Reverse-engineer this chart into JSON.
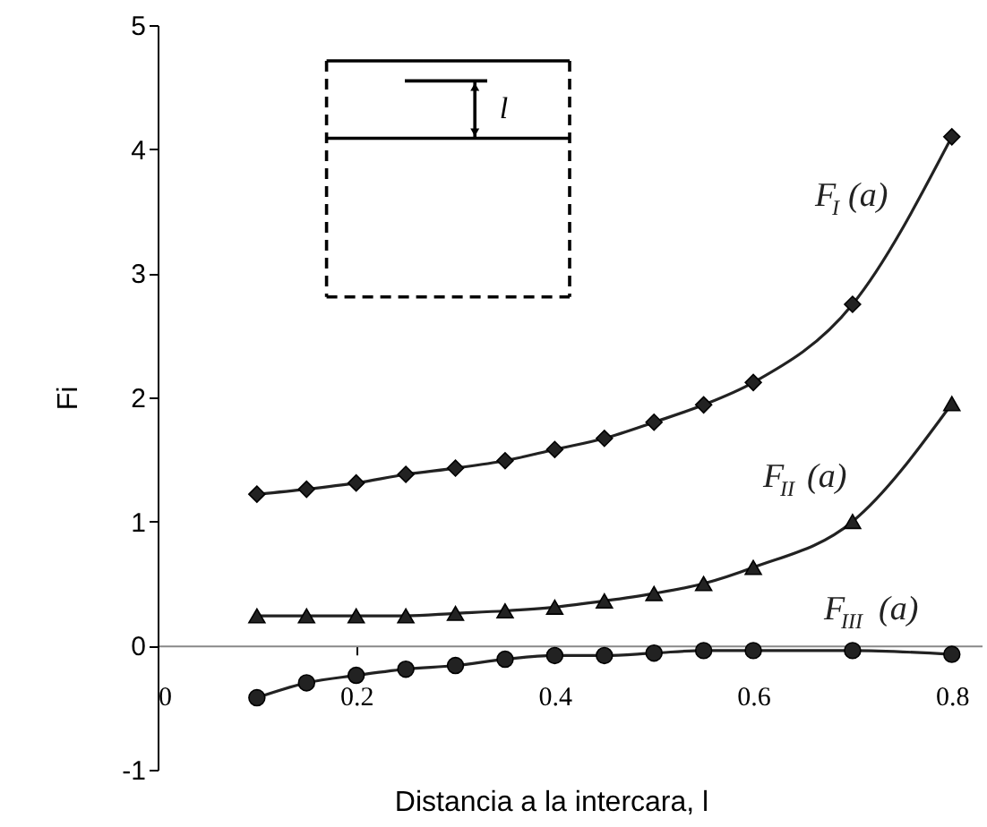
{
  "chart_data": {
    "type": "line",
    "xlabel": "Distancia a la intercara, l",
    "ylabel": "Fi",
    "x": [
      0.1,
      0.15,
      0.2,
      0.25,
      0.3,
      0.35,
      0.4,
      0.45,
      0.5,
      0.55,
      0.6,
      0.7,
      0.8
    ],
    "series": [
      {
        "name": "F$_{I}$ (a)",
        "color": "#222222",
        "marker": "diamond",
        "values": [
          1.22,
          1.26,
          1.31,
          1.38,
          1.43,
          1.49,
          1.58,
          1.67,
          1.8,
          1.94,
          2.12,
          2.75,
          4.1
        ]
      },
      {
        "name": "F$_{II}$ (a)",
        "color": "#222222",
        "marker": "triangle",
        "values": [
          0.24,
          0.24,
          0.24,
          0.24,
          0.26,
          0.28,
          0.31,
          0.36,
          0.42,
          0.5,
          0.63,
          1.0,
          1.95
        ]
      },
      {
        "name": "F$_{III}$ (a)",
        "color": "#222222",
        "marker": "circle",
        "values": [
          -0.42,
          -0.3,
          -0.24,
          -0.19,
          -0.16,
          -0.11,
          -0.08,
          -0.08,
          -0.06,
          -0.04,
          -0.04,
          -0.04,
          -0.07
        ]
      }
    ],
    "xlim": [
      0,
      0.83
    ],
    "xticks": [
      0,
      0.2,
      0.4,
      0.6,
      0.8
    ],
    "ylim": [
      -1,
      5
    ],
    "yticks": [
      -1,
      0,
      1,
      2,
      3,
      4,
      5
    ],
    "grid": false,
    "line_style": "solid",
    "annotations": [
      "l"
    ]
  }
}
